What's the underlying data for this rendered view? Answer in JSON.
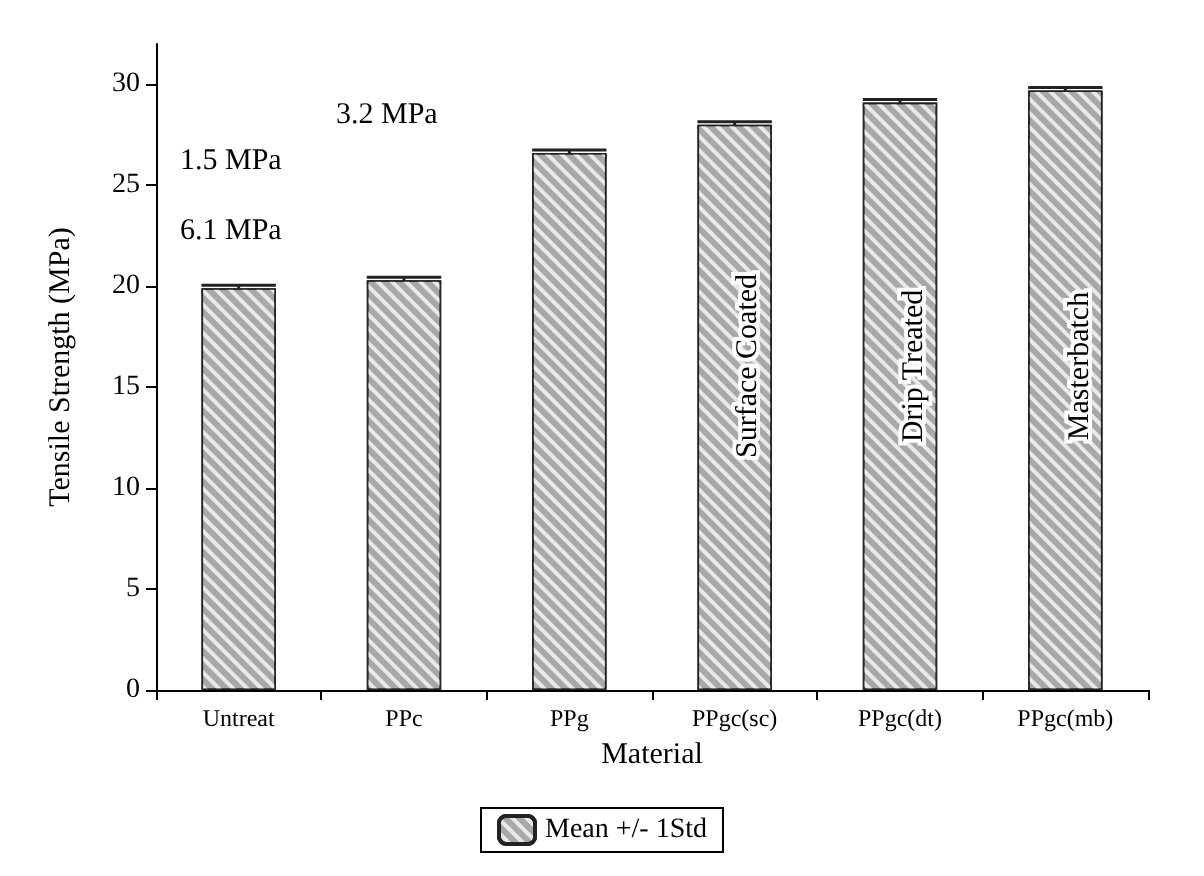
{
  "chart_data": {
    "type": "bar",
    "xlabel": "Material",
    "ylabel": "Tensile Strength (MPa)",
    "categories": [
      "Untreat",
      "PPc",
      "PPg",
      "PPgc(sc)",
      "PPgc(dt)",
      "PPgc(mb)"
    ],
    "series": [
      {
        "name": "Mean +/- 1Std",
        "color": "#a8a8a8",
        "values": [
          19.9,
          20.3,
          26.6,
          28.0,
          29.1,
          29.7
        ],
        "errors": [
          0.15,
          0.15,
          0.15,
          0.15,
          0.15,
          0.15
        ]
      }
    ],
    "ylim": [
      0,
      32
    ],
    "yticks": [
      0,
      5,
      10,
      15,
      20,
      25,
      30
    ],
    "grid": false,
    "legend": "bottom",
    "annotations": [
      "6.1 MPa",
      "1.5 MPa",
      "3.2 MPa",
      "Surface Coated",
      "Drip Treated",
      "Masterbatch"
    ]
  }
}
